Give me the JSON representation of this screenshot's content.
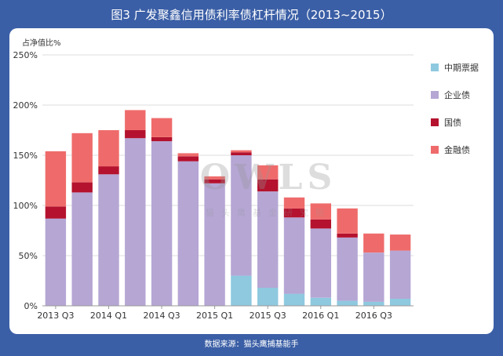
{
  "header": {
    "title": "图3 广发聚鑫信用债利率债杠杆情况（2013~2015）"
  },
  "footer": {
    "source": "数据来源：猫头鹰捕基能手"
  },
  "watermark": {
    "logo": "OWLS",
    "subtitle": "猫头鹰基金研究院"
  },
  "chart_data": {
    "type": "bar",
    "stacked": true,
    "ylabel": "占净值比%",
    "ylim": [
      0,
      250
    ],
    "yticks": [
      "0%",
      "50%",
      "100%",
      "150%",
      "200%",
      "250%"
    ],
    "ytick_values": [
      0,
      50,
      100,
      150,
      200,
      250
    ],
    "xtick_labels": [
      "2013 Q3",
      "2014 Q1",
      "2014 Q3",
      "2015 Q1",
      "2015 Q3",
      "2016 Q1",
      "2016 Q3"
    ],
    "xtick_positions": [
      0,
      2,
      4,
      6,
      8,
      10,
      12
    ],
    "n_bars": 14,
    "grid": true,
    "legend_position": "right",
    "series": [
      {
        "name": "中期票据",
        "color": "#8ec9df",
        "values": [
          0,
          0,
          0,
          0,
          0,
          0,
          0,
          30,
          18,
          12,
          8,
          5,
          4,
          7
        ]
      },
      {
        "name": "企业债",
        "color": "#b5a6d4",
        "values": [
          87,
          113,
          131,
          167,
          164,
          144,
          122,
          120,
          96,
          76,
          69,
          63,
          49,
          48
        ]
      },
      {
        "name": "国债",
        "color": "#b4122e",
        "values": [
          12,
          10,
          8,
          8,
          4,
          5,
          4,
          3,
          12,
          9,
          9,
          4,
          0,
          0
        ]
      },
      {
        "name": "金融债",
        "color": "#ef6b6b",
        "values": [
          55,
          49,
          36,
          20,
          19,
          3,
          3,
          2,
          14,
          11,
          16,
          25,
          19,
          16
        ]
      }
    ]
  }
}
